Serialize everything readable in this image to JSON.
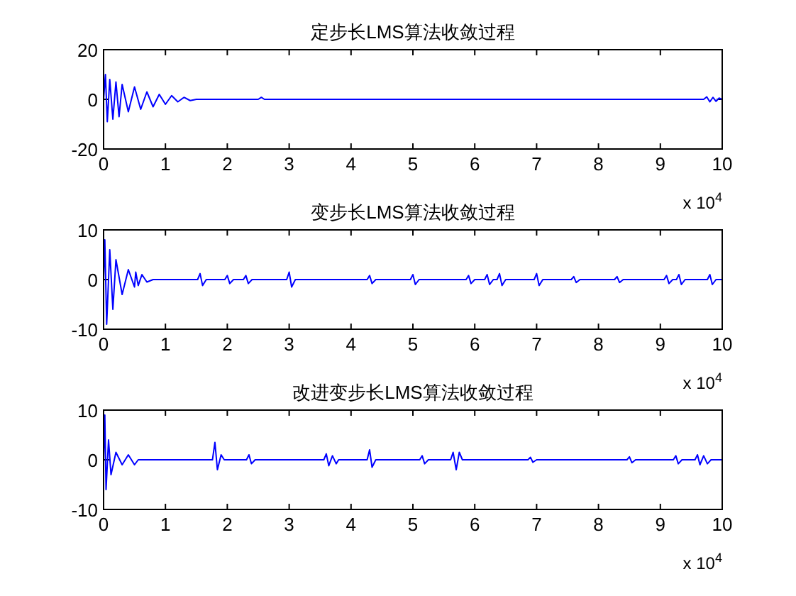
{
  "chart_data": [
    {
      "type": "line",
      "title": "定步长LMS算法收敛过程",
      "color": "#0000ff",
      "xlim": [
        0,
        10
      ],
      "xticks": [
        0,
        1,
        2,
        3,
        4,
        5,
        6,
        7,
        8,
        9,
        10
      ],
      "ylim": [
        -20,
        20
      ],
      "yticks": [
        -20,
        0,
        20
      ],
      "annotations": [
        "x 10$^{4}$"
      ],
      "x": [
        0,
        0.03,
        0.06,
        0.1,
        0.15,
        0.2,
        0.25,
        0.3,
        0.4,
        0.5,
        0.6,
        0.7,
        0.8,
        0.9,
        1.0,
        1.1,
        1.2,
        1.3,
        1.4,
        1.5,
        2.5,
        2.55,
        2.6,
        5,
        9.7,
        9.75,
        9.8,
        9.85,
        9.9,
        9.95,
        10
      ],
      "values": [
        0,
        10,
        -9,
        8,
        -8,
        7,
        -7,
        6,
        -5,
        5,
        -4,
        3,
        -3,
        2,
        -2,
        1.5,
        -1,
        0.8,
        -0.5,
        0,
        0,
        0.8,
        0,
        0,
        0,
        1,
        -1,
        0.8,
        -0.8,
        0.5,
        0
      ]
    },
    {
      "type": "line",
      "title": "变步长LMS算法收敛过程",
      "color": "#0000ff",
      "xlim": [
        0,
        10
      ],
      "xticks": [
        0,
        1,
        2,
        3,
        4,
        5,
        6,
        7,
        8,
        9,
        10
      ],
      "ylim": [
        -10,
        10
      ],
      "yticks": [
        -10,
        0,
        10
      ],
      "annotations": [
        "x 10$^{4}$"
      ],
      "x": [
        0,
        0.02,
        0.05,
        0.1,
        0.15,
        0.2,
        0.3,
        0.4,
        0.5,
        0.52,
        0.56,
        0.62,
        0.7,
        0.8,
        1.52,
        1.56,
        1.6,
        1.66,
        1.96,
        2.0,
        2.04,
        2.1,
        2.26,
        2.3,
        2.34,
        2.4,
        2.96,
        3.0,
        3.04,
        3.1,
        4.26,
        4.3,
        4.34,
        4.4,
        4.96,
        5.0,
        5.04,
        5.1,
        5.86,
        5.9,
        5.94,
        6.0,
        6.16,
        6.2,
        6.24,
        6.3,
        6.36,
        6.4,
        6.44,
        6.5,
        6.96,
        7.0,
        7.04,
        7.1,
        7.56,
        7.6,
        7.64,
        7.7,
        8.26,
        8.3,
        8.34,
        8.4,
        9.06,
        9.1,
        9.14,
        9.2,
        9.26,
        9.3,
        9.34,
        9.4,
        9.76,
        9.8,
        9.84,
        9.9,
        10
      ],
      "values": [
        0,
        8,
        -9,
        6,
        -6,
        4,
        -3,
        2,
        -1.5,
        1.5,
        -1.2,
        1,
        -0.5,
        0,
        0,
        1.2,
        -1.2,
        0,
        0,
        0.8,
        -0.8,
        0,
        0,
        0.8,
        -0.8,
        0,
        0,
        1.5,
        -1.5,
        0,
        0,
        0.8,
        -0.8,
        0,
        0,
        1,
        -1,
        0,
        0,
        0.8,
        -0.8,
        0,
        0,
        1,
        -1,
        0,
        0,
        1.2,
        -1.2,
        0,
        0,
        1.2,
        -1.2,
        0,
        0,
        0.6,
        -0.6,
        0,
        0,
        0.6,
        -0.6,
        0,
        0,
        0.8,
        -0.8,
        0,
        0,
        1,
        -1,
        0,
        0,
        1,
        -1,
        0,
        0
      ]
    },
    {
      "type": "line",
      "title": "改进变步长LMS算法收敛过程",
      "color": "#0000ff",
      "xlim": [
        0,
        10
      ],
      "xticks": [
        0,
        1,
        2,
        3,
        4,
        5,
        6,
        7,
        8,
        9,
        10
      ],
      "ylim": [
        -10,
        10
      ],
      "yticks": [
        -10,
        0,
        10
      ],
      "annotations": [
        "x 10$^{4}$"
      ],
      "x": [
        0,
        0.02,
        0.04,
        0.08,
        0.12,
        0.2,
        0.3,
        0.4,
        0.5,
        0.56,
        1.76,
        1.8,
        1.84,
        1.9,
        1.95,
        2.31,
        2.35,
        2.39,
        2.45,
        3.56,
        3.6,
        3.64,
        3.7,
        3.76,
        3.8,
        4.26,
        4.3,
        4.34,
        4.4,
        5.11,
        5.15,
        5.19,
        5.25,
        5.61,
        5.65,
        5.7,
        5.75,
        5.8,
        6.86,
        6.9,
        6.94,
        7.0,
        8.46,
        8.5,
        8.54,
        8.6,
        9.21,
        9.25,
        9.29,
        9.35,
        9.56,
        9.6,
        9.64,
        9.7,
        9.76,
        9.82,
        10
      ],
      "values": [
        0,
        9,
        -6,
        4,
        -3,
        1.5,
        -1,
        1,
        -1,
        0,
        0,
        3.5,
        -2,
        1,
        0,
        0,
        1,
        -0.8,
        0,
        0,
        1.2,
        -1.2,
        0.8,
        -0.8,
        0,
        0,
        2,
        -1.5,
        0,
        0,
        0.8,
        -0.8,
        0,
        0,
        1.5,
        -2,
        1.5,
        0,
        0,
        0.5,
        -0.5,
        0,
        0,
        0.6,
        -0.6,
        0,
        0,
        0.8,
        -0.8,
        0,
        0,
        1,
        -1,
        0.8,
        -0.8,
        0,
        0
      ]
    }
  ]
}
